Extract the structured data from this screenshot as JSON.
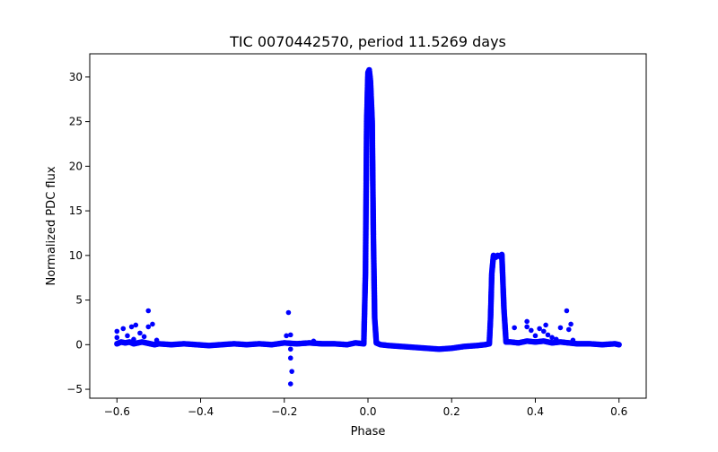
{
  "chart_data": {
    "type": "scatter",
    "title": "TIC 0070442570, period 11.5269 days",
    "xlabel": "Phase",
    "ylabel": "Normalized PDC flux",
    "xlim": [
      -0.665,
      0.665
    ],
    "ylim": [
      -6.0,
      32.6
    ],
    "xticks": [
      -0.6,
      -0.4,
      -0.2,
      0.0,
      0.2,
      0.4,
      0.6
    ],
    "xtick_labels": [
      "−0.6",
      "−0.4",
      "−0.2",
      "0.0",
      "0.2",
      "0.4",
      "0.6"
    ],
    "yticks": [
      -5,
      0,
      5,
      10,
      15,
      20,
      25,
      30
    ],
    "ytick_labels": [
      "−5",
      "0",
      "5",
      "10",
      "15",
      "20",
      "25",
      "30"
    ],
    "grid": false,
    "marker_color": "#0000ff",
    "series": [
      {
        "x": [
          -0.6,
          -0.59,
          -0.58,
          -0.57,
          -0.56,
          -0.55,
          -0.54,
          -0.53,
          -0.52,
          -0.51,
          -0.5,
          -0.47,
          -0.44,
          -0.41,
          -0.38,
          -0.35,
          -0.32,
          -0.29,
          -0.26,
          -0.23,
          -0.2,
          -0.17,
          -0.14,
          -0.11,
          -0.08,
          -0.05,
          -0.03,
          -0.01,
          -0.006,
          -0.003,
          0.0,
          0.003,
          0.006,
          0.01,
          0.013,
          0.016,
          0.02,
          0.03,
          0.05,
          0.08,
          0.11,
          0.14,
          0.17,
          0.2,
          0.23,
          0.26,
          0.28,
          0.29,
          0.293,
          0.296,
          0.3,
          0.305,
          0.31,
          0.315,
          0.32,
          0.325,
          0.33,
          0.34,
          0.36,
          0.38,
          0.4,
          0.42,
          0.44,
          0.46,
          0.48,
          0.5,
          0.53,
          0.56,
          0.59,
          0.6
        ],
        "y": [
          0.1,
          0.3,
          0.2,
          0.3,
          0.1,
          0.2,
          0.3,
          0.2,
          0.1,
          0.0,
          0.1,
          0.0,
          0.1,
          0.0,
          -0.1,
          0.0,
          0.1,
          0.0,
          0.1,
          0.0,
          0.2,
          0.1,
          0.2,
          0.1,
          0.1,
          0.0,
          0.2,
          0.1,
          8.0,
          25.0,
          30.5,
          30.8,
          29.5,
          25.0,
          12.0,
          3.0,
          0.2,
          0.0,
          -0.1,
          -0.2,
          -0.3,
          -0.4,
          -0.5,
          -0.4,
          -0.2,
          -0.1,
          0.0,
          0.1,
          3.0,
          8.0,
          10.0,
          9.8,
          10.0,
          9.9,
          10.1,
          4.0,
          0.3,
          0.3,
          0.2,
          0.4,
          0.3,
          0.4,
          0.2,
          0.3,
          0.2,
          0.1,
          0.1,
          0.0,
          0.1,
          0.0
        ]
      }
    ],
    "scatter_points": [
      [
        -0.6,
        1.5
      ],
      [
        -0.6,
        0.8
      ],
      [
        -0.585,
        1.8
      ],
      [
        -0.575,
        1.0
      ],
      [
        -0.565,
        2.0
      ],
      [
        -0.56,
        0.6
      ],
      [
        -0.555,
        2.2
      ],
      [
        -0.545,
        1.3
      ],
      [
        -0.535,
        0.9
      ],
      [
        -0.525,
        3.8
      ],
      [
        -0.525,
        2.0
      ],
      [
        -0.515,
        2.3
      ],
      [
        -0.505,
        0.5
      ],
      [
        -0.19,
        3.6
      ],
      [
        -0.195,
        1.0
      ],
      [
        -0.185,
        1.1
      ],
      [
        -0.185,
        -0.5
      ],
      [
        -0.185,
        -1.5
      ],
      [
        -0.182,
        -3.0
      ],
      [
        -0.185,
        -4.4
      ],
      [
        -0.13,
        0.4
      ],
      [
        0.35,
        1.9
      ],
      [
        0.38,
        2.6
      ],
      [
        0.38,
        2.0
      ],
      [
        0.39,
        1.6
      ],
      [
        0.4,
        1.0
      ],
      [
        0.41,
        1.8
      ],
      [
        0.42,
        1.5
      ],
      [
        0.425,
        2.2
      ],
      [
        0.43,
        1.1
      ],
      [
        0.44,
        0.8
      ],
      [
        0.45,
        0.6
      ],
      [
        0.46,
        1.9
      ],
      [
        0.475,
        3.8
      ],
      [
        0.48,
        1.7
      ],
      [
        0.485,
        2.3
      ],
      [
        0.49,
        0.5
      ]
    ]
  }
}
